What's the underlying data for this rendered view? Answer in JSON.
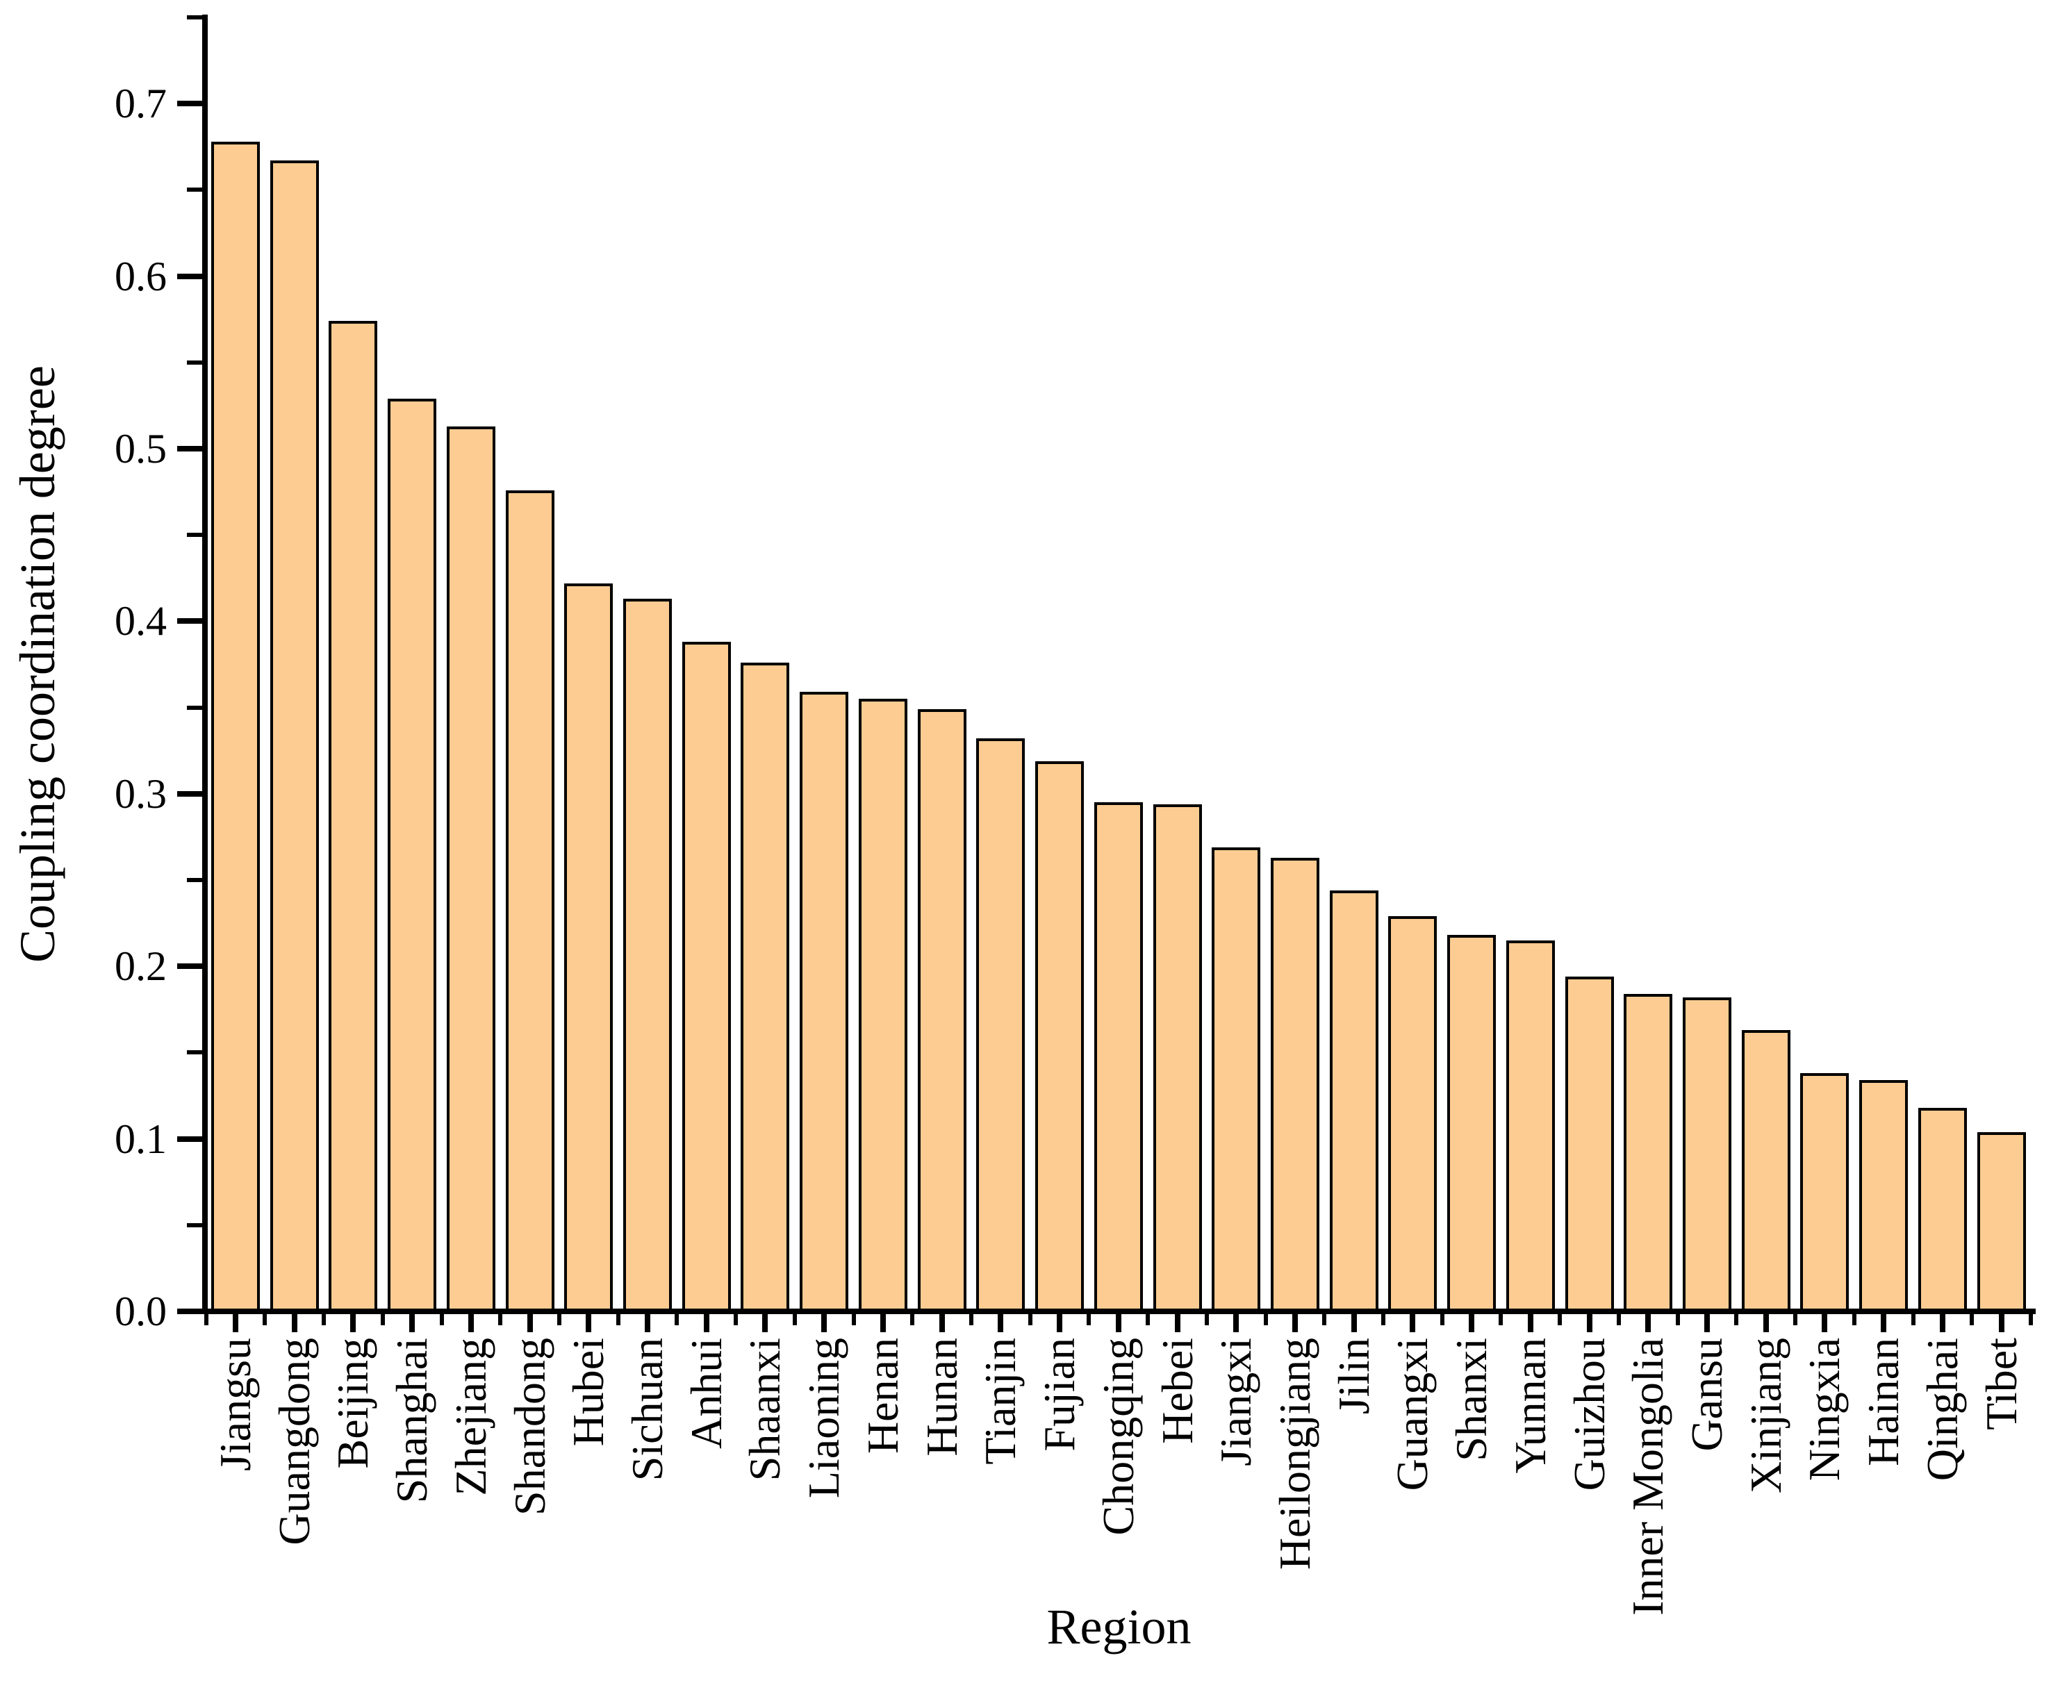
{
  "figure": {
    "background": "#ffffff",
    "axis_color": "#000000",
    "text_color": "#000000"
  },
  "chart_data": {
    "type": "bar",
    "title": "",
    "xlabel": "Region",
    "ylabel": "Coupling coordination degree",
    "grid": false,
    "legend": null,
    "ylim": [
      0,
      0.75
    ],
    "ytick_labels": [
      "0.0",
      "0.1",
      "0.2",
      "0.3",
      "0.4",
      "0.5",
      "0.6",
      "0.7"
    ],
    "bar_fill_color": "#FCCC92",
    "bar_edge_color": "#000000",
    "categories": [
      "Jiangsu",
      "Guangdong",
      "Beijing",
      "Shanghai",
      "Zhejiang",
      "Shandong",
      "Hubei",
      "Sichuan",
      "Anhui",
      "Shaanxi",
      "Liaoning",
      "Henan",
      "Hunan",
      "Tianjin",
      "Fujian",
      "Chongqing",
      "Hebei",
      "Jiangxi",
      "Heilongjiang",
      "Jilin",
      "Guangxi",
      "Shanxi",
      "Yunnan",
      "Guizhou",
      "Inner Mongolia",
      "Gansu",
      "Xinjiang",
      "Ningxia",
      "Hainan",
      "Qinghai",
      "Tibet"
    ],
    "values": [
      0.678,
      0.667,
      0.574,
      0.529,
      0.513,
      0.476,
      0.422,
      0.413,
      0.388,
      0.376,
      0.359,
      0.355,
      0.349,
      0.332,
      0.319,
      0.295,
      0.294,
      0.269,
      0.263,
      0.244,
      0.229,
      0.218,
      0.215,
      0.194,
      0.184,
      0.182,
      0.163,
      0.138,
      0.134,
      0.118,
      0.104
    ]
  }
}
